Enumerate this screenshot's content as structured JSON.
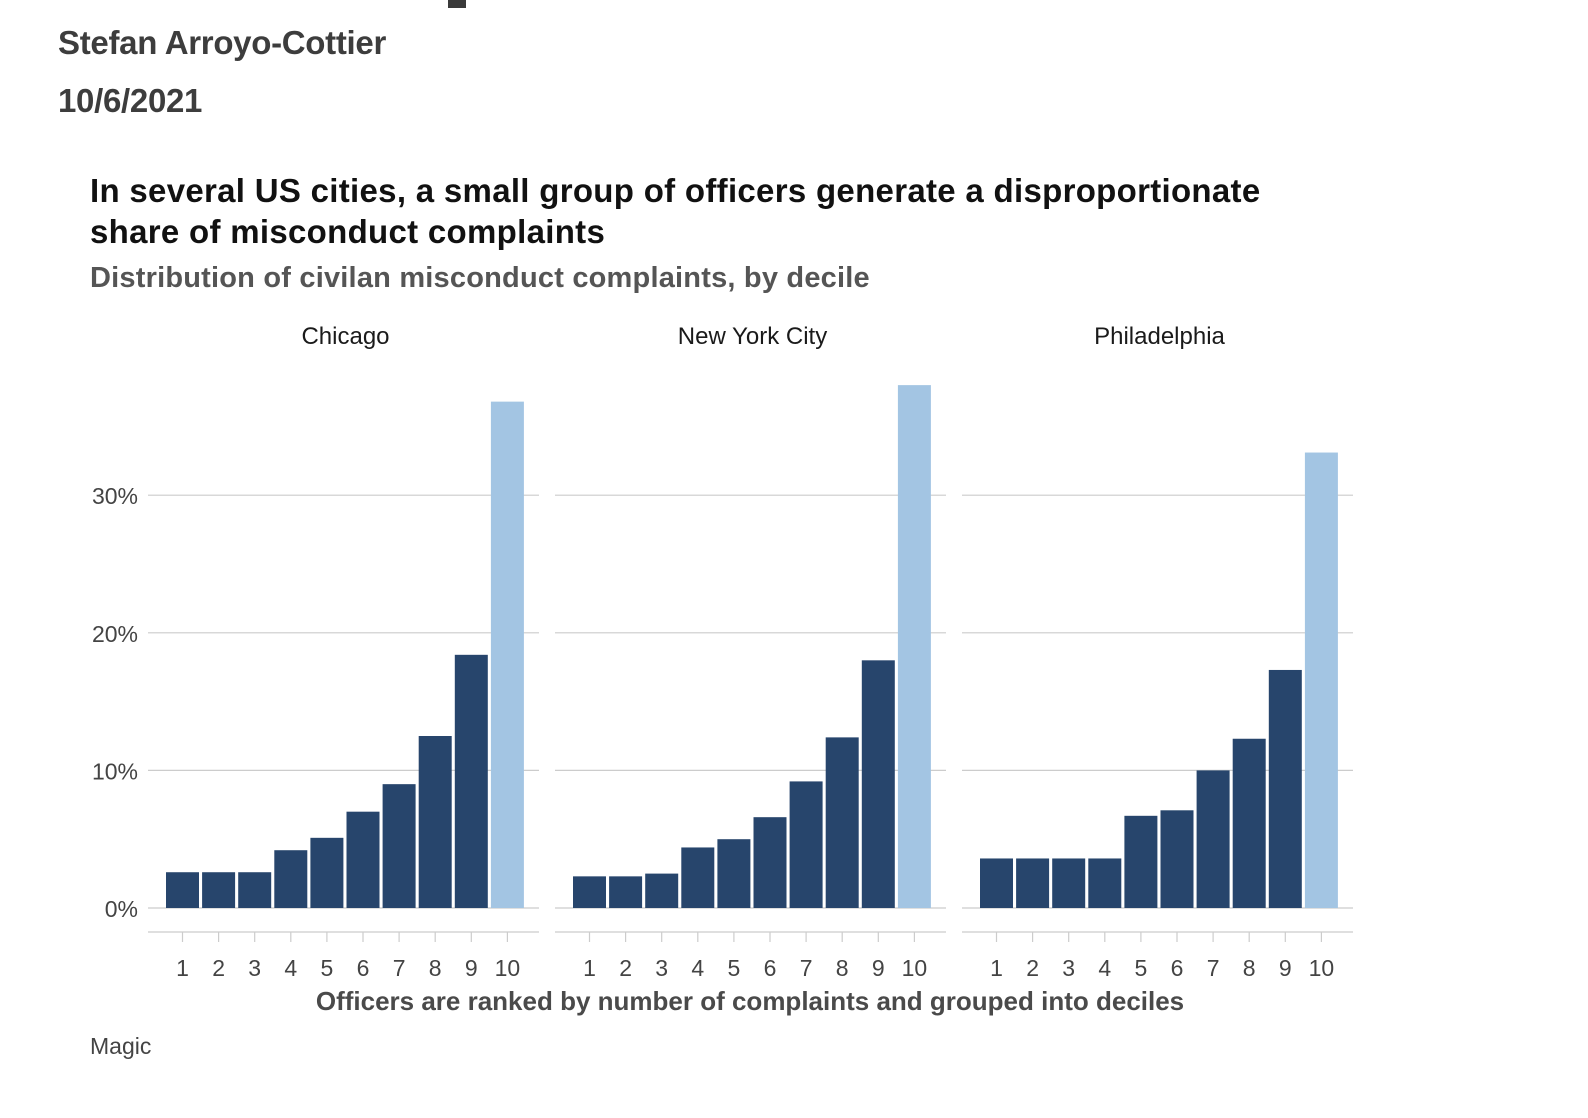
{
  "header": {
    "author": "Stefan Arroyo-Cottier",
    "date": "10/6/2021"
  },
  "chart_data": {
    "type": "bar",
    "title_line1": "In several US cities, a small group of officers generate a disproportionate",
    "title_line2": "share of misconduct complaints",
    "subtitle": "Distribution of civilan misconduct complaints, by decile",
    "xlabel": "Officers are ranked by number of complaints and grouped into deciles",
    "ylabel": "",
    "caption": "Magic",
    "categories": [
      "1",
      "2",
      "3",
      "4",
      "5",
      "6",
      "7",
      "8",
      "9",
      "10"
    ],
    "yticks": [
      0,
      10,
      20,
      30
    ],
    "ytick_labels": [
      "0%",
      "10%",
      "20%",
      "30%"
    ],
    "ylim": [
      0,
      39
    ],
    "grid": "horizontal",
    "colors": {
      "dark": "#27456c",
      "highlight": "#a3c5e3",
      "grid": "#cccccc",
      "axis_text": "#444444"
    },
    "panels": [
      {
        "name": "Chicago",
        "values": [
          2.6,
          2.6,
          2.6,
          4.2,
          5.1,
          7.0,
          9.0,
          12.5,
          18.4,
          36.8
        ]
      },
      {
        "name": "New York City",
        "values": [
          2.3,
          2.3,
          2.5,
          4.4,
          5.0,
          6.6,
          9.2,
          12.4,
          18.0,
          38.0
        ]
      },
      {
        "name": "Philadelphia",
        "values": [
          3.6,
          3.6,
          3.6,
          3.6,
          6.7,
          7.1,
          10.0,
          12.3,
          17.3,
          33.1
        ]
      }
    ]
  }
}
